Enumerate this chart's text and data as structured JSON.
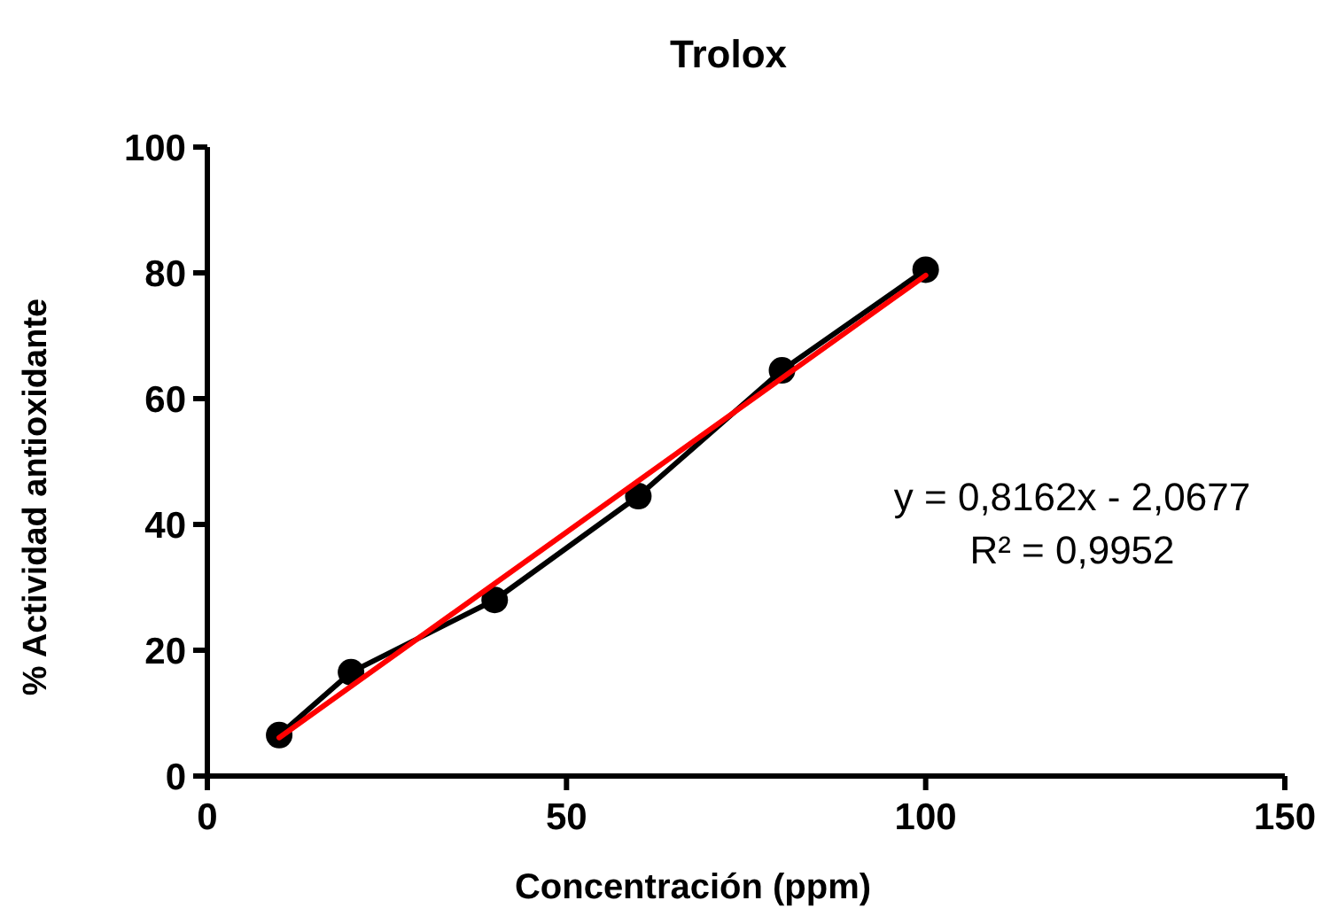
{
  "chart_data": {
    "type": "line",
    "title": "Trolox",
    "xlabel": "Concentración (ppm)",
    "ylabel": "% Actividad antioxidante",
    "x": [
      10,
      20,
      40,
      60,
      80,
      100
    ],
    "series": [
      {
        "color": "#000000",
        "values": [
          6.5,
          16.5,
          28,
          44.5,
          64.5,
          80.5
        ],
        "marker": "circle"
      },
      {
        "type": "line",
        "color": "#ff0000",
        "x": [
          10,
          100
        ],
        "values": [
          6.1,
          79.6
        ],
        "marker": "none"
      }
    ],
    "xlim": [
      0,
      150
    ],
    "xticks": [
      0,
      50,
      100,
      150
    ],
    "ylim": [
      0,
      100
    ],
    "yticks": [
      0,
      20,
      40,
      60,
      80,
      100
    ],
    "grid": false,
    "annotations": [
      "y = 0,8162x - 2,0677",
      "R² = 0,9952"
    ]
  }
}
